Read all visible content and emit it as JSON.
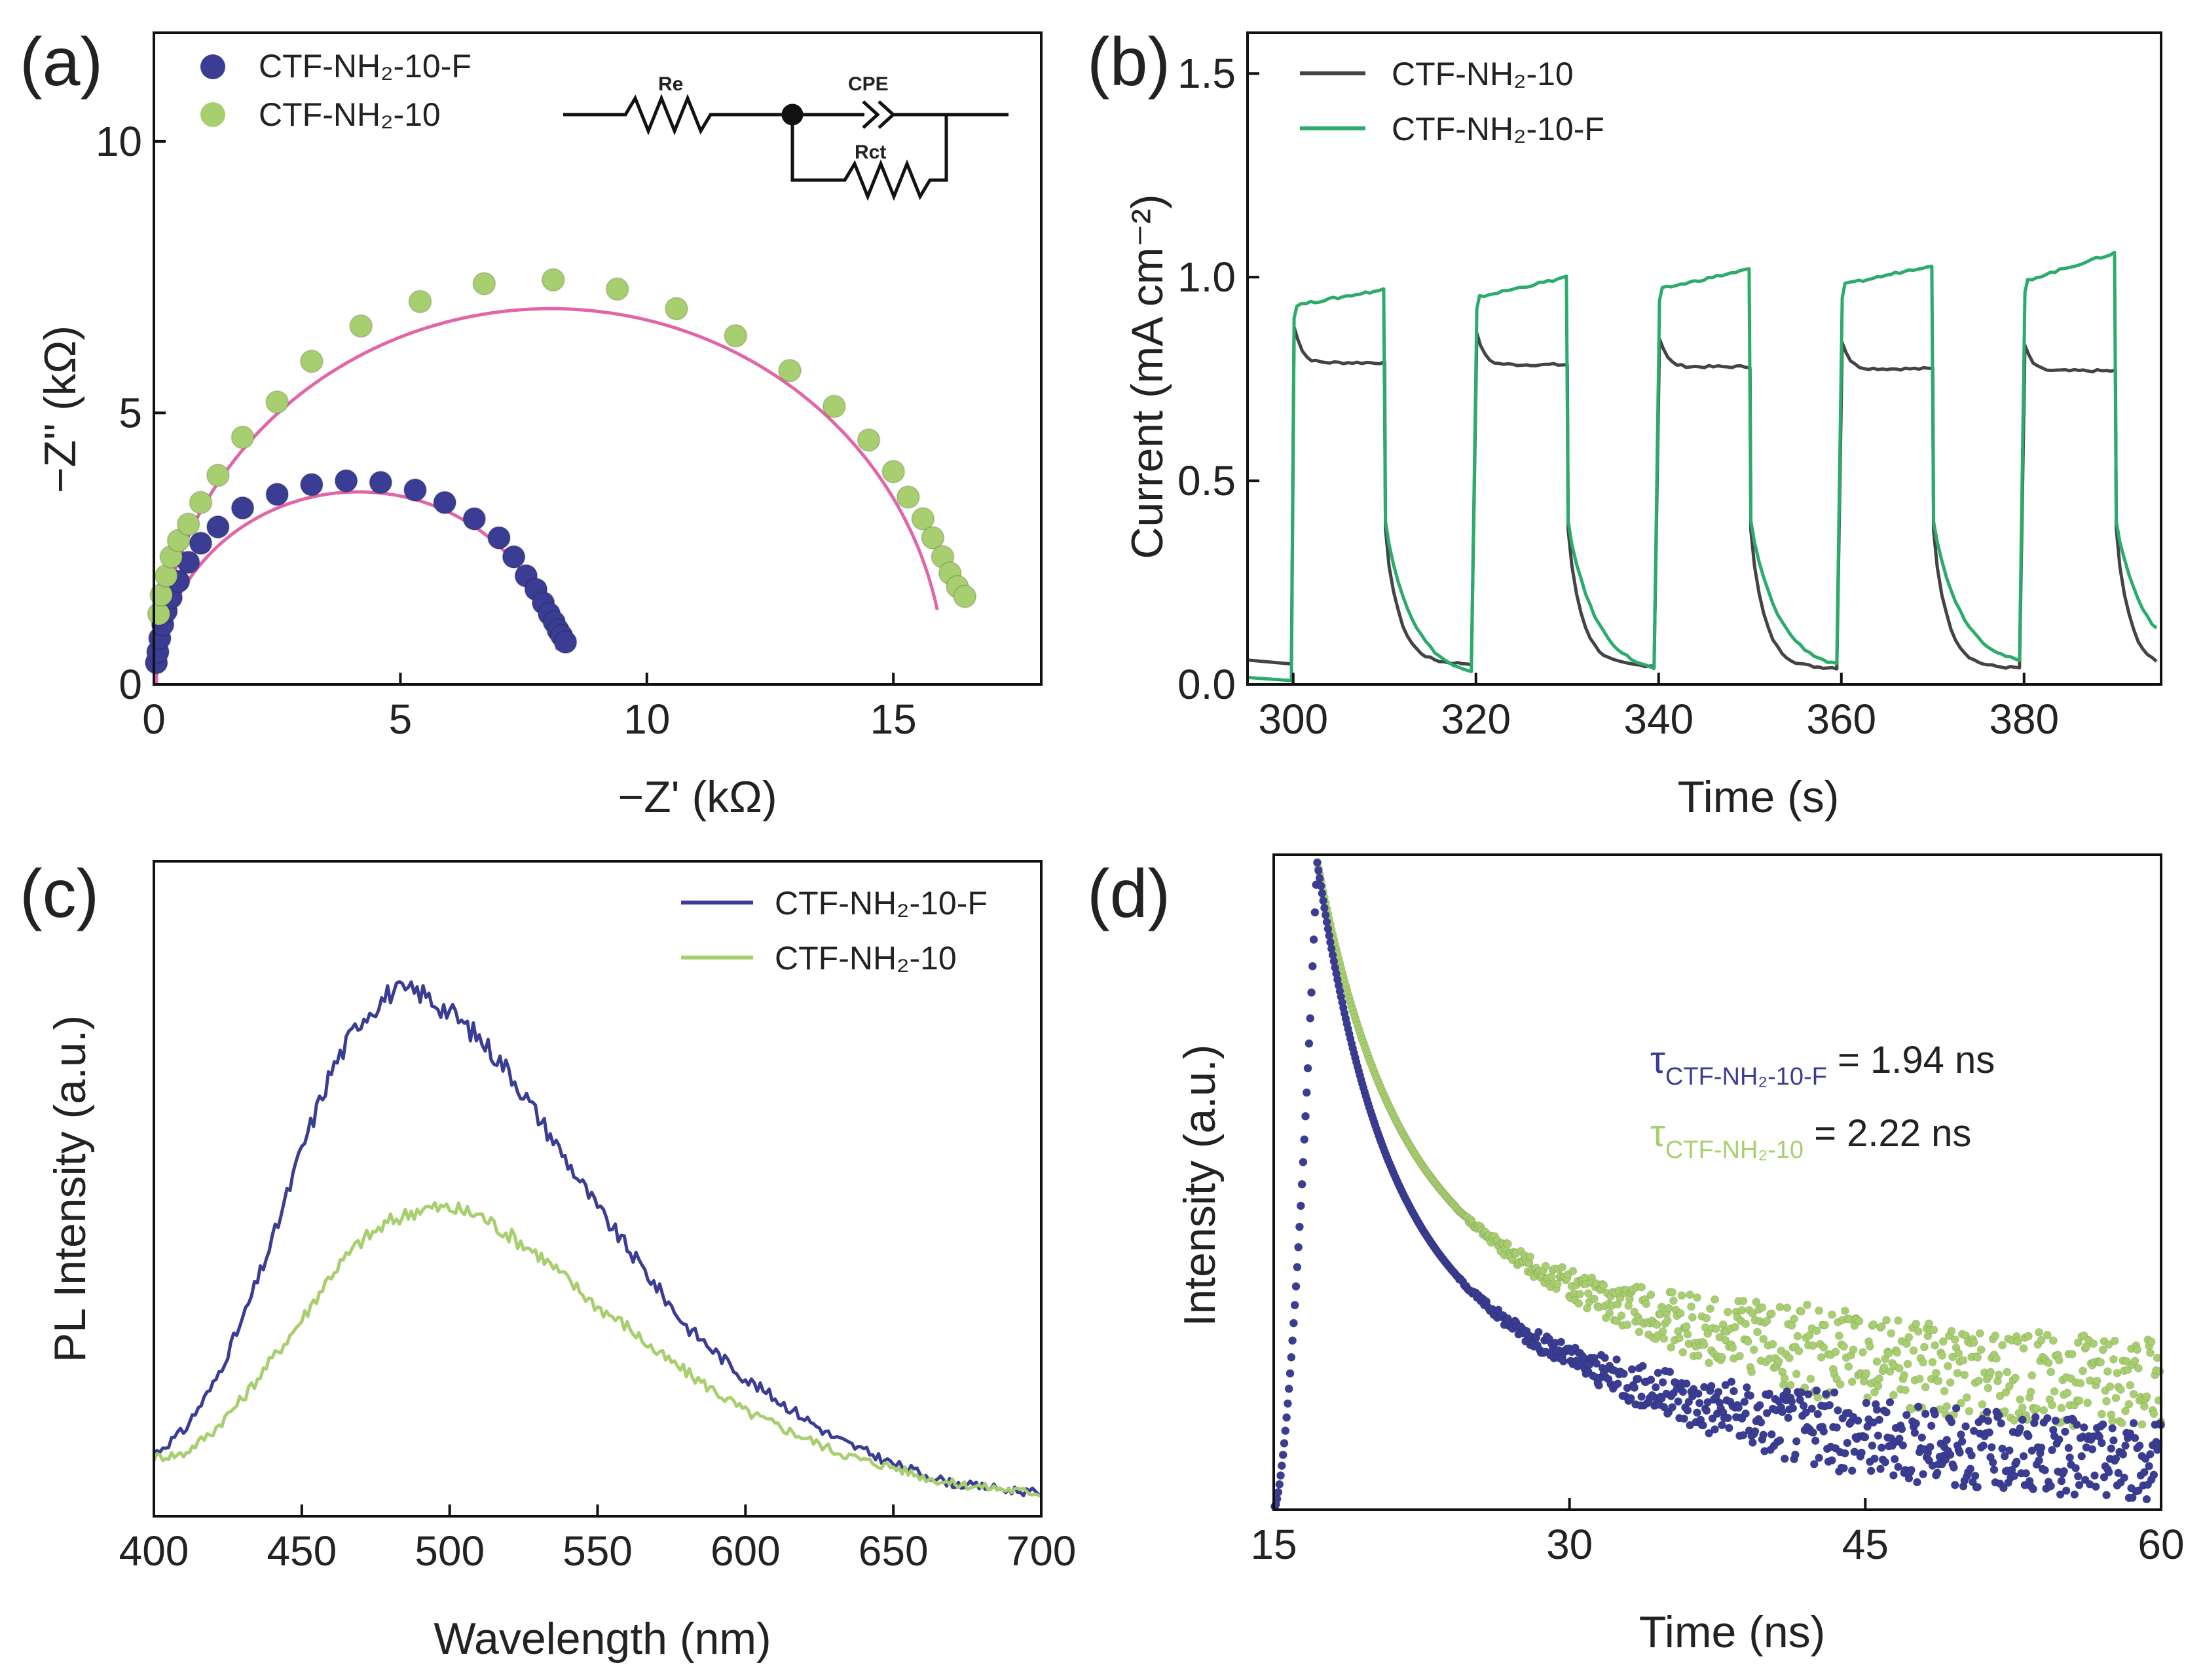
{
  "figure": {
    "title": ""
  },
  "colors": {
    "blue": "#3a3d93",
    "green": "#a8cf6f",
    "dark": "#444444",
    "electro_green": "#2bac6a",
    "fit": "#e066a8"
  },
  "panels": [
    {
      "label": "(a)"
    },
    {
      "label": "(b)"
    },
    {
      "label": "(c)"
    },
    {
      "label": "(d)"
    }
  ],
  "chart_data": [
    {
      "panel": "(a)",
      "type": "scatter",
      "title": "",
      "xlabel": "−Z' (kΩ)",
      "ylabel": "−Z'' (kΩ)",
      "xlim": [
        0,
        18
      ],
      "ylim": [
        0,
        12
      ],
      "xticks": [
        "0",
        "5",
        "10",
        "15"
      ],
      "xtick_values": [
        0,
        5,
        10,
        15
      ],
      "yticks": [
        "0",
        "5",
        "10"
      ],
      "ytick_values": [
        0,
        5,
        10
      ],
      "legend": {
        "placement": "top-left",
        "entries": [
          "CTF-NH₂-10-F",
          "CTF-NH₂-10"
        ]
      },
      "circuit_labels": {
        "re": "Re",
        "cpe": "CPE",
        "rct": "Rct"
      },
      "series": [
        {
          "name": "CTF-NH₂-10-F",
          "color": "#3a3d93",
          "x": [
            0.05,
            0.08,
            0.12,
            0.18,
            0.25,
            0.35,
            0.5,
            0.7,
            0.95,
            1.3,
            1.8,
            2.5,
            3.2,
            3.9,
            4.6,
            5.3,
            5.9,
            6.5,
            7.0,
            7.3,
            7.55,
            7.75,
            7.9,
            8.02,
            8.12,
            8.2,
            8.27,
            8.35
          ],
          "y": [
            0.4,
            0.6,
            0.85,
            1.1,
            1.35,
            1.6,
            1.9,
            2.25,
            2.6,
            2.9,
            3.25,
            3.5,
            3.68,
            3.75,
            3.72,
            3.58,
            3.35,
            3.05,
            2.7,
            2.35,
            2.0,
            1.75,
            1.5,
            1.3,
            1.15,
            1.0,
            0.9,
            0.78
          ]
        },
        {
          "name": "CTF-NH₂-10",
          "color": "#a8cf6f",
          "x": [
            0.1,
            0.15,
            0.25,
            0.35,
            0.5,
            0.7,
            0.95,
            1.3,
            1.8,
            2.5,
            3.2,
            4.2,
            5.4,
            6.7,
            8.1,
            9.4,
            10.6,
            11.8,
            12.9,
            13.8,
            14.5,
            15.0,
            15.3,
            15.6,
            15.8,
            16.0,
            16.15,
            16.3,
            16.45
          ],
          "y": [
            1.3,
            1.65,
            2.0,
            2.35,
            2.65,
            2.95,
            3.35,
            3.85,
            4.55,
            5.2,
            5.95,
            6.6,
            7.05,
            7.38,
            7.45,
            7.28,
            6.92,
            6.42,
            5.78,
            5.12,
            4.5,
            3.92,
            3.45,
            3.05,
            2.7,
            2.35,
            2.05,
            1.8,
            1.62
          ]
        }
      ],
      "fits": [
        {
          "name": "fit CTF-NH₂-10-F",
          "center": 4.15,
          "radius": 4.1,
          "flatten": 0.93,
          "theta_end": 0.18
        },
        {
          "name": "fit CTF-NH₂-10",
          "center": 8.05,
          "radius": 8.0,
          "flatten": 0.93,
          "theta_end": 0.2
        }
      ]
    },
    {
      "panel": "(b)",
      "type": "line",
      "title": "",
      "xlabel": "Time (s)",
      "ylabel": "Current (mA cm⁻²)",
      "xlim": [
        295,
        395
      ],
      "ylim": [
        0,
        1.6
      ],
      "xticks": [
        "300",
        "320",
        "340",
        "360",
        "380"
      ],
      "xtick_values": [
        300,
        320,
        340,
        360,
        380
      ],
      "yticks": [
        "0.0",
        "0.5",
        "1.0",
        "1.5"
      ],
      "ytick_values": [
        0,
        0.5,
        1.0,
        1.5
      ],
      "legend": {
        "placement": "top-left",
        "entries": [
          "CTF-NH₂-10",
          "CTF-NH₂-10-F"
        ]
      },
      "light_on": [
        300,
        320,
        340,
        360,
        380
      ],
      "light_off": [
        310,
        330,
        350,
        370,
        390
      ],
      "series": [
        {
          "name": "CTF-NH₂-10",
          "color": "#444444",
          "dark_start": 0.06,
          "spike": [
            0.88,
            0.86,
            0.85,
            0.84,
            0.83
          ],
          "plateau": [
            0.79,
            0.785,
            0.78,
            0.775,
            0.77
          ],
          "dark_end": [
            0.05,
            0.045,
            0.04,
            0.04,
            0.035
          ],
          "tail_after_off": 0.38
        },
        {
          "name": "CTF-NH₂-10-F",
          "color": "#2bac6a",
          "dark_start": 0.02,
          "on_start": [
            0.93,
            0.95,
            0.97,
            0.98,
            0.99
          ],
          "on_end": [
            0.97,
            1.0,
            1.02,
            1.03,
            1.06
          ],
          "dark_end": [
            0.01,
            0.02,
            0.03,
            0.04,
            0.05
          ],
          "tail_after_off": 0.4,
          "final_value": 0.22
        }
      ]
    },
    {
      "panel": "(c)",
      "type": "line",
      "title": "",
      "xlabel": "Wavelength (nm)",
      "ylabel": "PL Intensity (a.u.)",
      "xlim": [
        400,
        700
      ],
      "ylim": [
        0,
        1.0
      ],
      "xticks": [
        "400",
        "450",
        "500",
        "550",
        "600",
        "650",
        "700"
      ],
      "xtick_values": [
        400,
        450,
        500,
        550,
        600,
        650,
        700
      ],
      "yticks": [],
      "legend": {
        "placement": "top-right",
        "entries": [
          "CTF-NH₂-10-F",
          "CTF-NH₂-10"
        ]
      },
      "series": [
        {
          "name": "CTF-NH₂-10-F",
          "color": "#3a3d93",
          "x": [
            400,
            410,
            420,
            430,
            440,
            450,
            460,
            470,
            480,
            490,
            500,
            510,
            520,
            530,
            540,
            550,
            560,
            570,
            580,
            590,
            600,
            610,
            620,
            630,
            640,
            650,
            660,
            670,
            680,
            690,
            700
          ],
          "y": [
            0.095,
            0.13,
            0.2,
            0.3,
            0.42,
            0.56,
            0.68,
            0.76,
            0.8,
            0.8,
            0.77,
            0.73,
            0.68,
            0.61,
            0.54,
            0.47,
            0.41,
            0.35,
            0.29,
            0.25,
            0.21,
            0.18,
            0.15,
            0.12,
            0.1,
            0.08,
            0.065,
            0.05,
            0.045,
            0.04,
            0.035
          ]
        },
        {
          "name": "CTF-NH₂-10",
          "color": "#a8cf6f",
          "x": [
            400,
            410,
            420,
            430,
            440,
            450,
            460,
            470,
            480,
            490,
            500,
            510,
            520,
            530,
            540,
            550,
            560,
            570,
            580,
            590,
            600,
            610,
            620,
            630,
            640,
            650,
            660,
            670,
            680,
            690,
            700
          ],
          "y": [
            0.09,
            0.095,
            0.13,
            0.18,
            0.24,
            0.3,
            0.37,
            0.42,
            0.45,
            0.47,
            0.47,
            0.46,
            0.43,
            0.4,
            0.36,
            0.32,
            0.29,
            0.25,
            0.22,
            0.19,
            0.16,
            0.14,
            0.12,
            0.1,
            0.085,
            0.075,
            0.06,
            0.05,
            0.045,
            0.04,
            0.035
          ]
        }
      ]
    },
    {
      "panel": "(d)",
      "type": "scatter",
      "title": "",
      "xlabel": "Time (ns)",
      "ylabel": "Intensity (a.u.)",
      "xlim": [
        15,
        60
      ],
      "ylim": [
        0,
        1.0
      ],
      "xticks": [
        "15",
        "30",
        "45",
        "60"
      ],
      "xtick_values": [
        15,
        30,
        45,
        60
      ],
      "yticks": [],
      "annotations": [
        {
          "tau": "τ",
          "sub": "CTF-NH₂-10-F",
          "value": " = 1.94 ns"
        },
        {
          "tau": "τ",
          "sub": "CTF-NH₂-10",
          "value": " = 2.22 ns"
        }
      ],
      "series": [
        {
          "name": "CTF-NH₂-10-F",
          "color": "#3a3d93",
          "rise_start": 15,
          "peak_time": 17.2,
          "peak": 0.99,
          "lifetime_ns": 1.94,
          "tail_level": 0.05,
          "noise": 0.06
        },
        {
          "name": "CTF-NH₂-10",
          "color": "#a8cf6f",
          "rise_start": 15,
          "peak_time": 17.2,
          "peak": 0.99,
          "lifetime_ns": 2.22,
          "tail_level": 0.16,
          "noise": 0.07
        }
      ]
    }
  ]
}
